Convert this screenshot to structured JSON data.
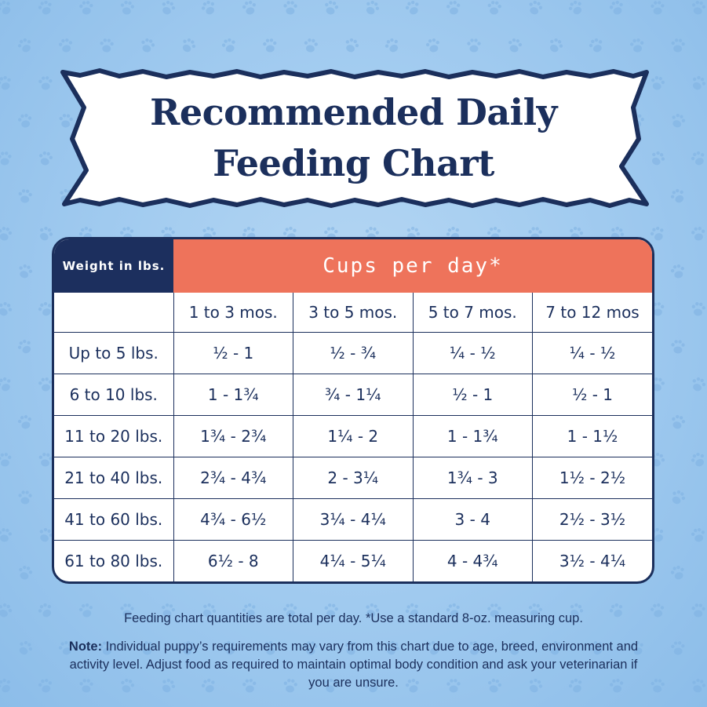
{
  "title": {
    "line1": "Recommended Daily",
    "line2": "Feeding Chart"
  },
  "table": {
    "corner_label": "Weight in lbs.",
    "cups_label": "Cups per day*",
    "age_columns": [
      "1 to 3 mos.",
      "3 to 5 mos.",
      "5 to 7 mos.",
      "7 to 12 mos"
    ],
    "rows": [
      {
        "weight": "Up to 5 lbs.",
        "values": [
          "½ - 1",
          "½ - ¾",
          "¼ - ½",
          "¼ - ½"
        ]
      },
      {
        "weight": "6 to 10 lbs.",
        "values": [
          "1 - 1¾",
          "¾ - 1¼",
          "½ - 1",
          "½ - 1"
        ]
      },
      {
        "weight": "11 to 20 lbs.",
        "values": [
          "1¾ - 2¾",
          "1¼ - 2",
          "1 - 1¾",
          "1 - 1½"
        ]
      },
      {
        "weight": "21 to 40 lbs.",
        "values": [
          "2¾ - 4¾",
          "2 - 3¼",
          "1¾ - 3",
          "1½ - 2½"
        ]
      },
      {
        "weight": "41 to 60 lbs.",
        "values": [
          "4¾ - 6½",
          "3¼ - 4¼",
          "3 - 4",
          "2½ - 3½"
        ]
      },
      {
        "weight": "61 to 80 lbs.",
        "values": [
          "6½ - 8",
          "4¼ - 5¼",
          "4 - 4¾",
          "3½ - 4¼"
        ]
      }
    ]
  },
  "footer": {
    "line1": "Feeding chart quantities are total per day. *Use a standard 8-oz. measuring cup.",
    "note_label": "Note:",
    "note_text": " Individual puppy’s requirements may vary from this chart due to age, breed, environment and activity level. Adjust food as required to maintain optimal body condition and ask  your veterinarian if you are unsure."
  },
  "colors": {
    "background": "#a3ccf0",
    "navy": "#1b2f5c",
    "coral": "#ee735b",
    "paw": "#7fb2e3"
  },
  "decor": {
    "background_icon": "paw-print-icon"
  }
}
